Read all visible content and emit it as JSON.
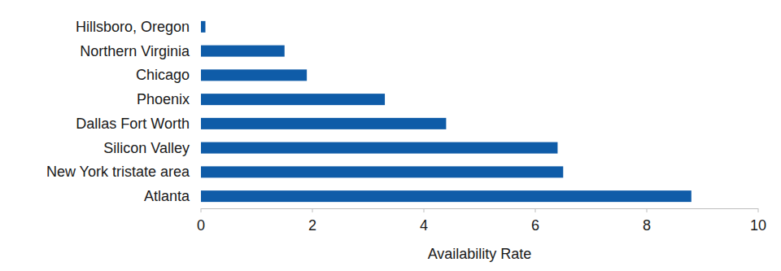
{
  "chart_data": {
    "type": "bar",
    "orientation": "horizontal",
    "x_label": "Availability Rate",
    "categories": [
      "Hillsboro, Oregon",
      "Northern Virginia",
      "Chicago",
      "Phoenix",
      "Dallas Fort Worth",
      "Silicon Valley",
      "New York tristate area",
      "Atlanta"
    ],
    "values": [
      0.08,
      1.5,
      1.9,
      3.3,
      4.4,
      6.4,
      6.5,
      8.8
    ],
    "color": "#0f5ca8",
    "xlim": [
      0,
      10
    ],
    "xticks": [
      0,
      2,
      4,
      6,
      8,
      10
    ],
    "grid": false
  }
}
